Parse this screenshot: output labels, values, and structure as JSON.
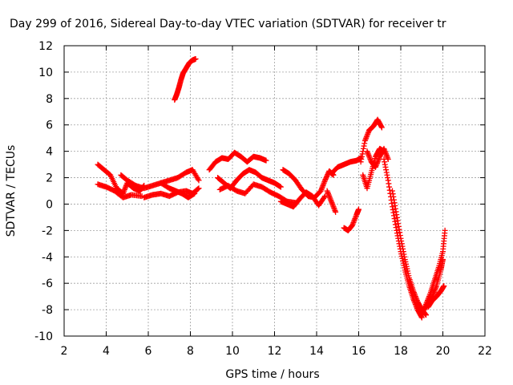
{
  "chart_data": {
    "type": "scatter",
    "title": "Day 299 of 2016, Sidereal Day-to-day VTEC variation (SDTVAR) for receiver tr",
    "xlabel": "GPS time / hours",
    "ylabel": "SDTVAR / TECUs",
    "xlim": [
      2,
      22
    ],
    "ylim": [
      -10,
      12
    ],
    "x_ticks": [
      2,
      4,
      6,
      8,
      10,
      12,
      14,
      16,
      18,
      20,
      22
    ],
    "y_ticks": [
      -10,
      -8,
      -6,
      -4,
      -2,
      0,
      2,
      4,
      6,
      8,
      10,
      12
    ],
    "grid": true,
    "legend": "none",
    "marker": "plus",
    "colors": {
      "points": "#ff0000",
      "grid": "#a0a0a0",
      "axes": "#000000"
    },
    "series": [
      {
        "tracks": [
          {
            "x": [
              3.6,
              3.9,
              4.2,
              4.5,
              4.8,
              5.0,
              5.3,
              5.6,
              5.8
            ],
            "y": [
              3.0,
              2.6,
              2.2,
              1.2,
              0.8,
              1.6,
              1.2,
              1.0,
              1.4
            ]
          },
          {
            "x": [
              3.6,
              4.0,
              4.4,
              4.8,
              5.2,
              5.7
            ],
            "y": [
              1.5,
              1.3,
              1.0,
              0.5,
              0.7,
              0.6
            ]
          },
          {
            "x": [
              4.7,
              5.0,
              5.4,
              5.8,
              6.2,
              6.6,
              7.0,
              7.4,
              7.8,
              8.1,
              8.4
            ],
            "y": [
              2.2,
              1.8,
              1.4,
              1.2,
              1.4,
              1.6,
              1.8,
              2.0,
              2.4,
              2.6,
              1.8
            ]
          },
          {
            "x": [
              5.8,
              6.2,
              6.6,
              7.0,
              7.4,
              7.8,
              8.1,
              8.4
            ],
            "y": [
              0.5,
              0.7,
              0.8,
              0.6,
              0.9,
              1.0,
              0.8,
              1.2
            ]
          },
          {
            "x": [
              6.6,
              7.0,
              7.3,
              7.6,
              7.9,
              8.2
            ],
            "y": [
              1.6,
              1.2,
              1.0,
              0.8,
              0.5,
              0.8
            ]
          },
          {
            "x": [
              7.25,
              7.35,
              7.45,
              7.55,
              7.65,
              7.8,
              7.95,
              8.1,
              8.25
            ],
            "y": [
              7.9,
              8.3,
              8.8,
              9.4,
              9.9,
              10.3,
              10.7,
              10.9,
              11.0
            ]
          },
          {
            "x": [
              8.9,
              9.2,
              9.5,
              9.8,
              10.1,
              10.4,
              10.7,
              11.0,
              11.3,
              11.6
            ],
            "y": [
              2.6,
              3.2,
              3.5,
              3.4,
              3.9,
              3.6,
              3.2,
              3.6,
              3.5,
              3.3
            ]
          },
          {
            "x": [
              9.3,
              9.6,
              9.9,
              10.2,
              10.5,
              10.8,
              11.1,
              11.4,
              11.7,
              12.0,
              12.3
            ],
            "y": [
              2.0,
              1.6,
              1.2,
              1.8,
              2.3,
              2.6,
              2.4,
              2.0,
              1.8,
              1.6,
              1.3
            ]
          },
          {
            "x": [
              9.4,
              9.8,
              10.2,
              10.6,
              11.0,
              11.4,
              11.8,
              12.2,
              12.6,
              13.0
            ],
            "y": [
              1.1,
              1.4,
              1.0,
              0.8,
              1.5,
              1.3,
              0.9,
              0.6,
              0.2,
              0.1
            ]
          },
          {
            "x": [
              12.4,
              12.7,
              13.0,
              13.3,
              13.6,
              13.9,
              14.2,
              14.4,
              14.6,
              14.8
            ],
            "y": [
              2.6,
              2.3,
              1.8,
              1.1,
              0.6,
              0.5,
              1.0,
              1.8,
              2.5,
              2.2
            ]
          },
          {
            "x": [
              12.3,
              12.6,
              12.9,
              13.2,
              13.5,
              13.8,
              14.1,
              14.4
            ],
            "y": [
              0.2,
              0.0,
              -0.2,
              0.4,
              0.9,
              0.6,
              -0.1,
              0.6
            ]
          },
          {
            "x": [
              14.5,
              14.7,
              14.9
            ],
            "y": [
              1.0,
              0.2,
              -0.6
            ]
          },
          {
            "x": [
              15.3,
              15.5,
              15.7,
              15.9,
              16.0
            ],
            "y": [
              -1.8,
              -2.0,
              -1.6,
              -0.8,
              -0.4
            ]
          },
          {
            "x": [
              14.7,
              15.0,
              15.3,
              15.6,
              15.9,
              16.1
            ],
            "y": [
              2.3,
              2.8,
              3.0,
              3.2,
              3.3,
              3.5
            ]
          },
          {
            "x": [
              16.1,
              16.3,
              16.5,
              16.7,
              16.9,
              17.1
            ],
            "y": [
              3.2,
              4.8,
              5.6,
              5.9,
              6.4,
              5.8
            ]
          },
          {
            "x": [
              16.2,
              16.4,
              16.6,
              16.8,
              17.0,
              17.2
            ],
            "y": [
              2.2,
              1.2,
              2.4,
              3.6,
              4.2,
              4.0
            ]
          },
          {
            "x": [
              16.4,
              16.6,
              16.8,
              17.0,
              17.2,
              17.4
            ],
            "y": [
              4.0,
              3.2,
              2.8,
              3.6,
              4.2,
              3.4
            ]
          },
          {
            "x": [
              17.2,
              17.4,
              17.6,
              17.8,
              18.0,
              18.2,
              18.4,
              18.6,
              18.8,
              19.0
            ],
            "y": [
              3.4,
              1.8,
              -0.2,
              -2.0,
              -3.6,
              -5.0,
              -6.2,
              -7.2,
              -8.0,
              -8.6
            ]
          },
          {
            "x": [
              17.6,
              17.8,
              18.0,
              18.2,
              18.4,
              18.6,
              18.8,
              19.0,
              19.2
            ],
            "y": [
              1.0,
              -0.8,
              -2.6,
              -4.2,
              -5.6,
              -6.6,
              -7.4,
              -8.0,
              -8.4
            ]
          },
          {
            "x": [
              19.0,
              19.2,
              19.4,
              19.6,
              19.8,
              20.0,
              20.1
            ],
            "y": [
              -8.4,
              -7.6,
              -6.8,
              -5.8,
              -4.8,
              -3.6,
              -2.0
            ]
          },
          {
            "x": [
              19.1,
              19.3,
              19.5,
              19.7,
              19.9,
              20.0
            ],
            "y": [
              -8.0,
              -7.5,
              -7.0,
              -6.2,
              -5.0,
              -4.2
            ]
          },
          {
            "x": [
              19.3,
              19.5,
              19.7,
              19.9,
              20.05
            ],
            "y": [
              -7.8,
              -7.3,
              -7.0,
              -6.6,
              -6.2
            ]
          }
        ]
      }
    ]
  }
}
